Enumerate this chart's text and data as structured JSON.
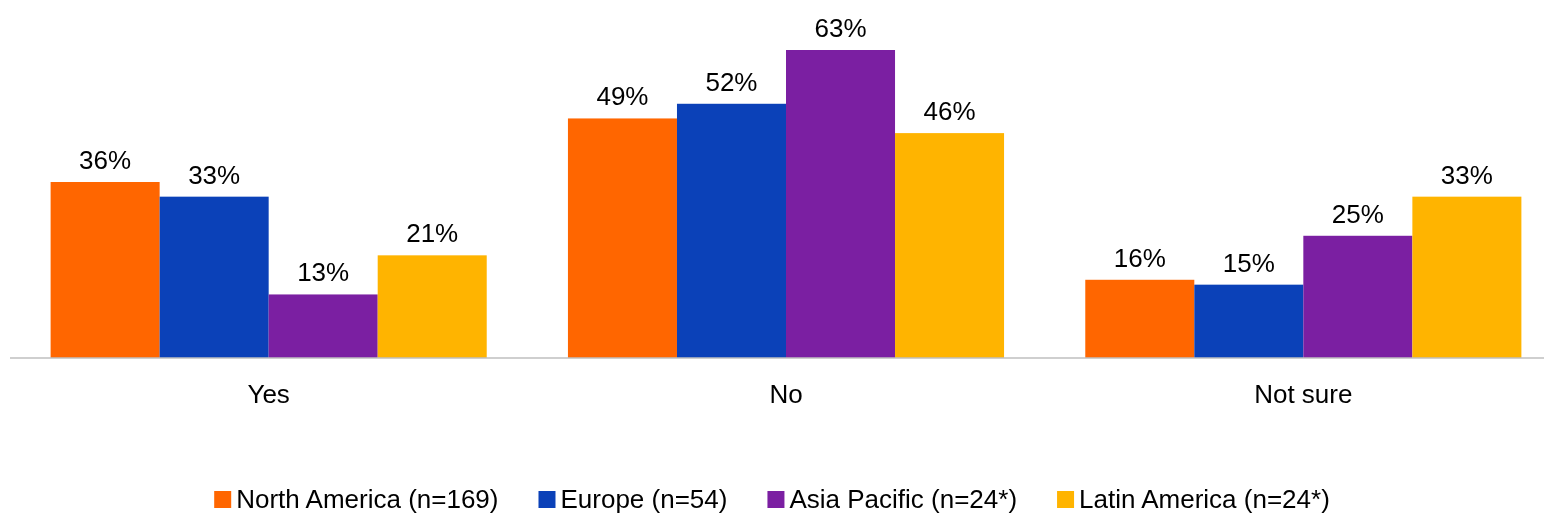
{
  "chart_data": {
    "type": "bar",
    "categories": [
      "Yes",
      "No",
      "Not sure"
    ],
    "series": [
      {
        "name": "North America (n=169)",
        "color": "#ff6600",
        "values": [
          36,
          49,
          16
        ],
        "value_labels": [
          "36%",
          "49%",
          "16%"
        ]
      },
      {
        "name": "Europe (n=54)",
        "color": "#0b41b8",
        "values": [
          33,
          52,
          15
        ],
        "value_labels": [
          "33%",
          "52%",
          "15%"
        ]
      },
      {
        "name": "Asia Pacific (n=24*)",
        "color": "#7b1fa2",
        "values": [
          13,
          63,
          25
        ],
        "value_labels": [
          "13%",
          "63%",
          "25%"
        ]
      },
      {
        "name": "Latin America (n=24*)",
        "color": "#ffb400",
        "values": [
          21,
          46,
          33
        ],
        "value_labels": [
          "21%",
          "46%",
          "33%"
        ]
      }
    ],
    "legend": "bottom",
    "tick_labels": "x"
  }
}
